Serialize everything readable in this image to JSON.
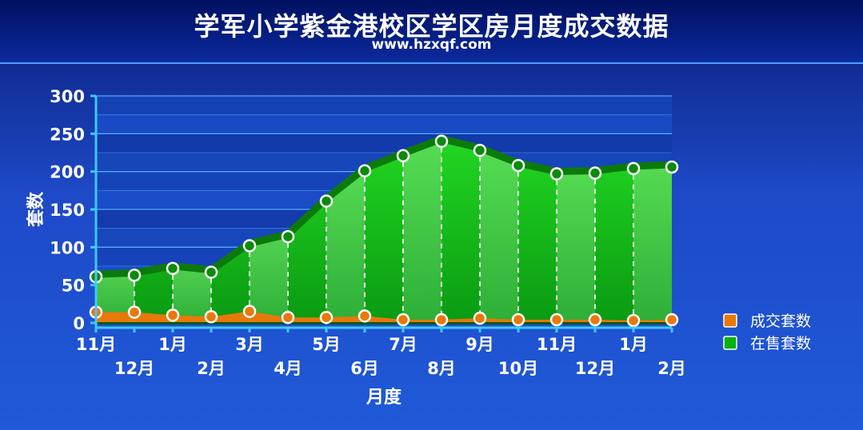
{
  "title": "学军小学紫金港校区学区房月度成交数据",
  "subtitle": "www.hzxqf.com",
  "colors": {
    "deal": "#e8780a",
    "sale": "#08b010",
    "sale_dark": "#0a7a0a"
  },
  "chart_data": {
    "type": "area",
    "xlabel": "月度",
    "ylabel": "套数",
    "ylim": [
      0,
      300
    ],
    "yticks": [
      0,
      50,
      100,
      150,
      200,
      250,
      300
    ],
    "categories": [
      "11月",
      "12月",
      "1月",
      "2月",
      "3月",
      "4月",
      "5月",
      "6月",
      "7月",
      "8月",
      "9月",
      "10月",
      "11月",
      "12月",
      "1月",
      "2月"
    ],
    "series": [
      {
        "name": "成交套数",
        "values": [
          11,
          11,
          7,
          5,
          12,
          4,
          4,
          6,
          1,
          1,
          3,
          1,
          1,
          1,
          0,
          1
        ]
      },
      {
        "name": "在售套数",
        "values": [
          61,
          63,
          72,
          67,
          102,
          114,
          161,
          201,
          221,
          240,
          228,
          208,
          197,
          198,
          204,
          206
        ]
      }
    ],
    "legend": "right"
  }
}
